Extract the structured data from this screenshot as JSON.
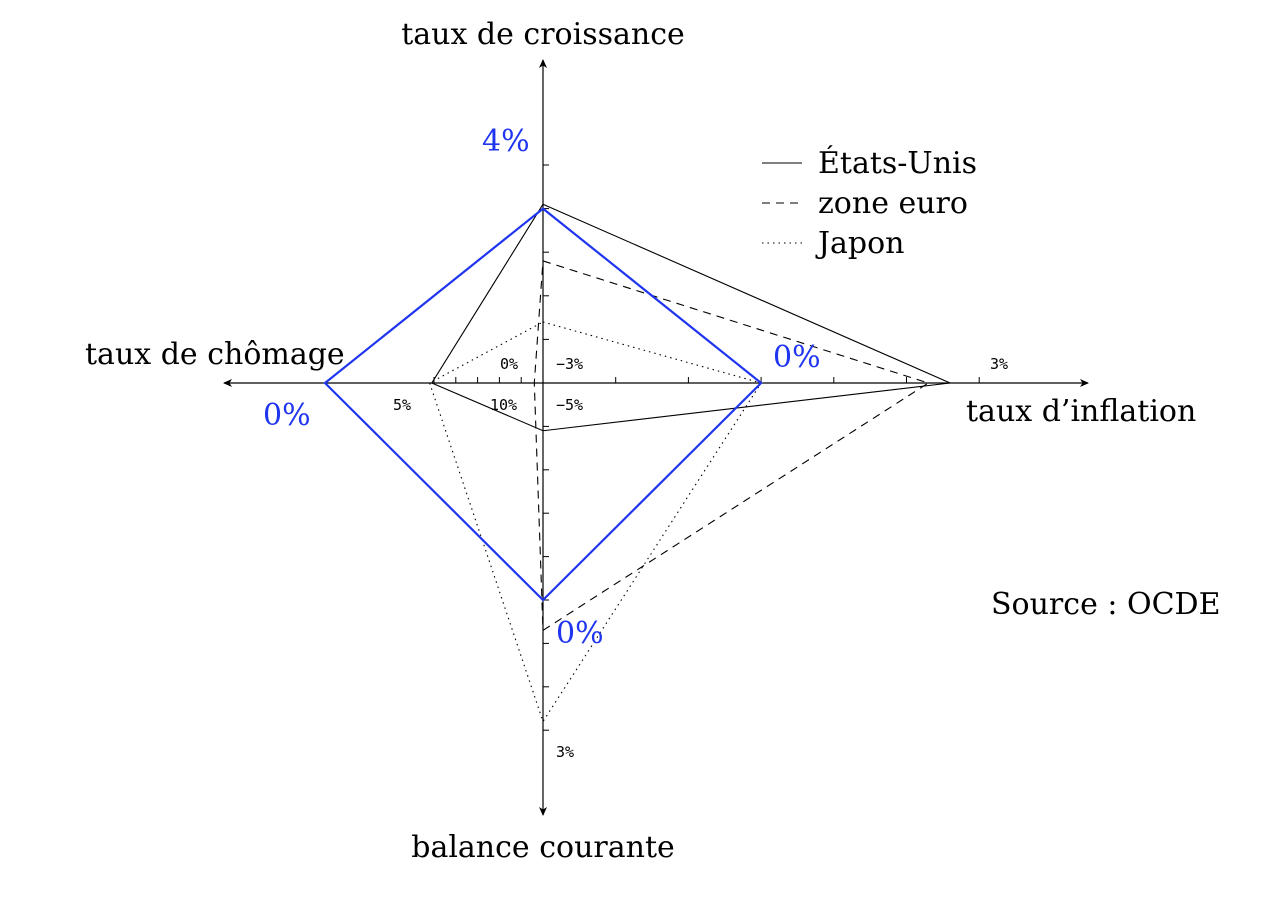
{
  "chart_data": {
    "type": "radar",
    "axes": [
      {
        "key": "growth",
        "title": "taux de croissance",
        "direction": "up",
        "max": 5,
        "ticks": 5,
        "range_labels": []
      },
      {
        "key": "inflation",
        "title": "taux d’inflation",
        "direction": "right",
        "min": -3,
        "max": 3,
        "ticks": 6,
        "range_labels": [
          "−3%",
          "3%"
        ]
      },
      {
        "key": "current_account",
        "title": "balance courante",
        "direction": "down",
        "min": -5,
        "max": 3,
        "ticks": 8,
        "range_labels": [
          "−5%",
          "3%"
        ]
      },
      {
        "key": "unemployment",
        "title": "taux de chômage",
        "direction": "left",
        "min": 10,
        "max": 5,
        "ticks": 5,
        "range_labels": [
          "10%",
          "5%"
        ]
      }
    ],
    "center_zero_label": "0%",
    "series": [
      {
        "name": "États-Unis",
        "style": "solid",
        "values": {
          "growth": 4.1,
          "inflation": 2.6,
          "current_account": -3.9,
          "unemployment": 4.9
        }
      },
      {
        "name": "zone euro",
        "style": "dashed",
        "values": {
          "growth": 2.8,
          "inflation": 2.3,
          "current_account": 0.7,
          "unemployment": 9.6
        }
      },
      {
        "name": "Japon",
        "style": "dotted",
        "values": {
          "growth": 1.4,
          "inflation": 0.0,
          "current_account": 2.8,
          "unemployment": 4.8
        }
      }
    ],
    "reference": {
      "color": "#1f35f0",
      "labels": {
        "growth": "4%",
        "inflation": "0%",
        "current_account": "0%",
        "unemployment": "0%"
      },
      "values": {
        "growth": 4,
        "inflation": 0,
        "current_account": 0,
        "unemployment": 0
      }
    },
    "annotation": "Source : OCDE"
  }
}
